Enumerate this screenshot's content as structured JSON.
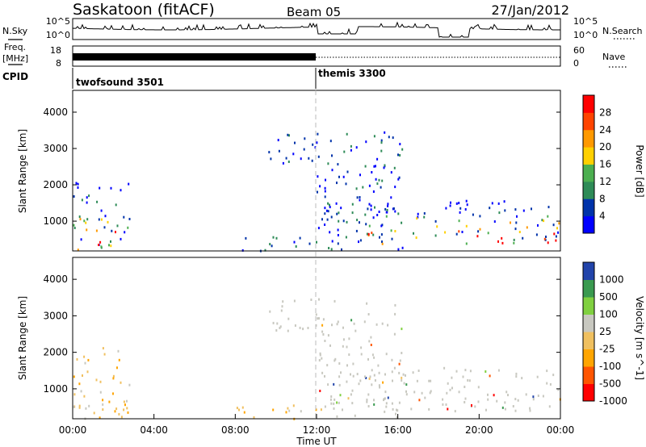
{
  "header": {
    "title": "Saskatoon (fitACF)",
    "beam": "Beam 05",
    "date": "27/Jan/2012"
  },
  "strips": {
    "nsky_label": "N.Sky",
    "nsky_ticks": [
      "10^5",
      "10^0"
    ],
    "nsearch_label": "N.Search",
    "nsearch_ticks": [
      "10^5",
      "10^0"
    ],
    "freq_label": "Freq.",
    "freq_unit": "[MHz]",
    "freq_ticks": [
      "18",
      "8"
    ],
    "nave_label": "Nave",
    "nave_ticks": [
      "60",
      "0"
    ],
    "cpid_label": "CPID",
    "cpid_programs": [
      {
        "name": "twofsound 3501",
        "start_hour": 0
      },
      {
        "name": "themis 3300",
        "start_hour": 12
      }
    ]
  },
  "chart_data": [
    {
      "type": "heatmap",
      "title": "",
      "ylabel": "Slant Range [km]",
      "xlim": [
        0,
        24
      ],
      "ylim": [
        180,
        4600
      ],
      "y_ticks": [
        1000,
        2000,
        3000,
        4000
      ],
      "colorbar": {
        "label": "Power [dB]",
        "ticks": [
          "28",
          "24",
          "20",
          "16",
          "12",
          "8",
          "4"
        ],
        "colors": [
          "#0000ff",
          "#0033aa",
          "#2e8b57",
          "#4caf50",
          "#ffd000",
          "#ff9900",
          "#ff4400",
          "#ff0000"
        ]
      },
      "regions": [
        {
          "x": [
            0,
            2.8
          ],
          "y": [
            200,
            2200
          ],
          "level": "mixed"
        },
        {
          "x": [
            8,
            12
          ],
          "y": [
            200,
            600
          ],
          "level": "low"
        },
        {
          "x": [
            9.5,
            12
          ],
          "y": [
            2600,
            3500
          ],
          "level": "low"
        },
        {
          "x": [
            12,
            16.2
          ],
          "y": [
            250,
            3500
          ],
          "level": "low"
        },
        {
          "x": [
            14.5,
            24
          ],
          "y": [
            400,
            1600
          ],
          "level": "mixed"
        }
      ]
    },
    {
      "type": "heatmap",
      "title": "",
      "ylabel": "Slant Range [km]",
      "xlim": [
        0,
        24
      ],
      "ylim": [
        180,
        4600
      ],
      "y_ticks": [
        1000,
        2000,
        3000,
        4000
      ],
      "x_ticks": [
        "00:00",
        "04:00",
        "08:00",
        "12:00",
        "16:00",
        "20:00",
        "00:00"
      ],
      "xlabel": "Time UT",
      "colorbar": {
        "label": "Velocity [m s^-1]",
        "ticks": [
          "1000",
          "500",
          "100",
          "25",
          "-25",
          "-100",
          "-500",
          "-1000"
        ],
        "colors": [
          "#ff0000",
          "#ff5500",
          "#ffa500",
          "#f0c060",
          "#c8c8c0",
          "#80d040",
          "#3a9a50",
          "#2244aa"
        ]
      },
      "regions": [
        {
          "x": [
            0,
            2.8
          ],
          "y": [
            200,
            2200
          ],
          "level": "mixed"
        },
        {
          "x": [
            8,
            12
          ],
          "y": [
            200,
            600
          ],
          "level": "low"
        },
        {
          "x": [
            9.5,
            12
          ],
          "y": [
            2600,
            3500
          ],
          "level": "grey"
        },
        {
          "x": [
            12,
            16.2
          ],
          "y": [
            250,
            3500
          ],
          "level": "grey"
        },
        {
          "x": [
            14.5,
            24
          ],
          "y": [
            400,
            1600
          ],
          "level": "grey"
        }
      ]
    }
  ]
}
